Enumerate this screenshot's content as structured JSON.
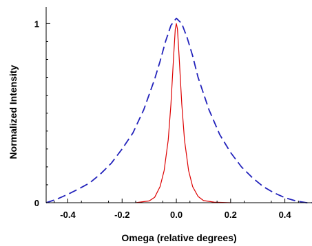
{
  "chart_data": {
    "type": "line",
    "title": "",
    "xlabel": "Omega (relative degrees)",
    "ylabel": "Normalized Intensity",
    "xlim": [
      -0.48,
      0.5
    ],
    "ylim": [
      0,
      1.0935
    ],
    "grid": false,
    "x_ticks": [
      {
        "value": -0.4,
        "label": "-0.4"
      },
      {
        "value": -0.2,
        "label": "-0.2"
      },
      {
        "value": 0.0,
        "label": "0.0"
      },
      {
        "value": 0.2,
        "label": "0.2"
      },
      {
        "value": 0.4,
        "label": "0.4"
      }
    ],
    "y_ticks": [
      {
        "value": 0,
        "label": "0"
      },
      {
        "value": 1,
        "label": "1"
      }
    ],
    "series": [
      {
        "color": "#2222bb",
        "style": "dashed",
        "x": [
          -0.48,
          -0.44,
          -0.4,
          -0.36,
          -0.32,
          -0.28,
          -0.24,
          -0.2,
          -0.16,
          -0.12,
          -0.08,
          -0.06,
          -0.04,
          -0.02,
          0.0,
          0.02,
          0.04,
          0.06,
          0.08,
          0.12,
          0.16,
          0.2,
          0.24,
          0.28,
          0.32,
          0.36,
          0.4,
          0.44,
          0.48,
          0.5
        ],
        "y": [
          0.0,
          0.02,
          0.047,
          0.077,
          0.11,
          0.16,
          0.22,
          0.3,
          0.39,
          0.52,
          0.69,
          0.79,
          0.9,
          0.99,
          1.03,
          1.0,
          0.92,
          0.82,
          0.7,
          0.52,
          0.38,
          0.28,
          0.2,
          0.14,
          0.09,
          0.055,
          0.028,
          0.01,
          0.0,
          0.0
        ]
      },
      {
        "color": "#dd0000",
        "style": "solid",
        "x": [
          -0.15,
          -0.1,
          -0.08,
          -0.06,
          -0.045,
          -0.03,
          -0.02,
          -0.01,
          -0.004,
          0.0,
          0.004,
          0.01,
          0.02,
          0.03,
          0.045,
          0.06,
          0.08,
          0.1,
          0.14,
          0.2
        ],
        "y": [
          0.0,
          0.01,
          0.03,
          0.09,
          0.18,
          0.35,
          0.55,
          0.82,
          0.97,
          1.0,
          0.97,
          0.82,
          0.55,
          0.35,
          0.18,
          0.09,
          0.035,
          0.012,
          0.003,
          0.0
        ]
      }
    ]
  }
}
